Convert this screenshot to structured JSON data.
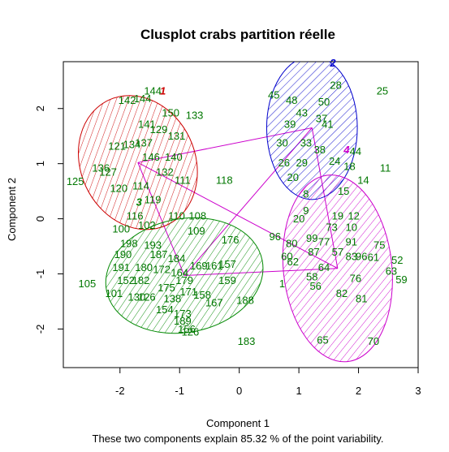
{
  "chart_data": {
    "type": "scatter",
    "title": "Clusplot crabs partition réelle",
    "xlabel": "Component 1",
    "ylabel": "Component 2",
    "caption": "These two components explain 85.32 % of the point variability.",
    "xlim": [
      -2.95,
      3.0
    ],
    "ylim": [
      -2.7,
      2.85
    ],
    "x_ticks": [
      "-2",
      "-1",
      "0",
      "1",
      "2",
      "3"
    ],
    "y_ticks": [
      "-2",
      "-1",
      "0",
      "1",
      "2"
    ],
    "colors": {
      "c1": "#cc0000",
      "c2": "#0000cc",
      "c3": "#008800",
      "c4": "#cc00cc",
      "points": "#007700",
      "links": "#cc00cc"
    },
    "clusters": [
      {
        "label": "1",
        "color": "#cc0000",
        "center": [
          -1.7,
          1.02
        ],
        "rx": 0.96,
        "ry": 1.25,
        "angle": -25
      },
      {
        "label": "2",
        "color": "#0000cc",
        "center": [
          1.22,
          1.65
        ],
        "rx": 0.76,
        "ry": 1.3,
        "angle": 0
      },
      {
        "label": "3",
        "color": "#008800",
        "center": [
          -0.92,
          -1.03
        ],
        "rx": 1.33,
        "ry": 1.03,
        "angle": -11
      },
      {
        "label": "4",
        "color": "#cc00cc",
        "center": [
          1.65,
          -0.9
        ],
        "rx": 0.91,
        "ry": 1.7,
        "angle": -6
      }
    ],
    "cluster_labels": [
      {
        "text": "1",
        "color": "#cc0000",
        "x": -1.28,
        "y": 2.32
      },
      {
        "text": "2",
        "color": "#0000cc",
        "x": 1.57,
        "y": 2.83
      },
      {
        "text": "3",
        "color": "#008800",
        "x": -1.68,
        "y": 0.3
      },
      {
        "text": "4",
        "color": "#cc00cc",
        "x": 1.8,
        "y": 1.25
      }
    ],
    "links": [
      [
        -1.7,
        1.02,
        1.22,
        1.65
      ],
      [
        -1.7,
        1.02,
        -0.92,
        -1.03
      ],
      [
        -1.7,
        1.02,
        1.65,
        -0.9
      ],
      [
        1.22,
        1.65,
        -0.92,
        -1.03
      ],
      [
        1.22,
        1.65,
        1.65,
        -0.9
      ],
      [
        -0.92,
        -1.03,
        1.65,
        -0.9
      ]
    ],
    "points": [
      {
        "label": "144",
        "x": -1.45,
        "y": 2.32
      },
      {
        "label": "142",
        "x": -1.88,
        "y": 2.15
      },
      {
        "label": "144",
        "x": -1.62,
        "y": 2.18
      },
      {
        "label": "150",
        "x": -1.15,
        "y": 1.92
      },
      {
        "label": "133",
        "x": -0.75,
        "y": 1.88
      },
      {
        "label": "141",
        "x": -1.55,
        "y": 1.72
      },
      {
        "label": "129",
        "x": -1.35,
        "y": 1.62
      },
      {
        "label": "131",
        "x": -1.05,
        "y": 1.5
      },
      {
        "label": "121",
        "x": -2.05,
        "y": 1.32
      },
      {
        "label": "134",
        "x": -1.8,
        "y": 1.35
      },
      {
        "label": "137",
        "x": -1.6,
        "y": 1.38
      },
      {
        "label": "146",
        "x": -1.48,
        "y": 1.12
      },
      {
        "label": "140",
        "x": -1.1,
        "y": 1.12
      },
      {
        "label": "136",
        "x": -2.32,
        "y": 0.92
      },
      {
        "label": "127",
        "x": -2.2,
        "y": 0.85
      },
      {
        "label": "132",
        "x": -1.25,
        "y": 0.85
      },
      {
        "label": "125",
        "x": -2.75,
        "y": 0.68
      },
      {
        "label": "120",
        "x": -2.02,
        "y": 0.55
      },
      {
        "label": "111",
        "x": -0.95,
        "y": 0.7
      },
      {
        "label": "118",
        "x": -0.25,
        "y": 0.7
      },
      {
        "label": "114",
        "x": -1.65,
        "y": 0.6
      },
      {
        "label": "119",
        "x": -1.45,
        "y": 0.35
      },
      {
        "label": "116",
        "x": -1.75,
        "y": 0.05
      },
      {
        "label": "110",
        "x": -1.05,
        "y": 0.05
      },
      {
        "label": "108",
        "x": -0.7,
        "y": 0.05
      },
      {
        "label": "102",
        "x": -1.55,
        "y": -0.12
      },
      {
        "label": "100",
        "x": -1.98,
        "y": -0.18
      },
      {
        "label": "109",
        "x": -0.72,
        "y": -0.22
      },
      {
        "label": "176",
        "x": -0.15,
        "y": -0.38
      },
      {
        "label": "198",
        "x": -1.85,
        "y": -0.45
      },
      {
        "label": "193",
        "x": -1.45,
        "y": -0.48
      },
      {
        "label": "190",
        "x": -1.95,
        "y": -0.65
      },
      {
        "label": "187",
        "x": -1.35,
        "y": -0.65
      },
      {
        "label": "184",
        "x": -1.05,
        "y": -0.72
      },
      {
        "label": "169",
        "x": -0.68,
        "y": -0.85
      },
      {
        "label": "161",
        "x": -0.42,
        "y": -0.85
      },
      {
        "label": "157",
        "x": -0.2,
        "y": -0.82
      },
      {
        "label": "191",
        "x": -1.98,
        "y": -0.88
      },
      {
        "label": "180",
        "x": -1.6,
        "y": -0.88
      },
      {
        "label": "172",
        "x": -1.3,
        "y": -0.92
      },
      {
        "label": "164",
        "x": -1.0,
        "y": -0.98
      },
      {
        "label": "152",
        "x": -1.9,
        "y": -1.12
      },
      {
        "label": "182",
        "x": -1.65,
        "y": -1.12
      },
      {
        "label": "179",
        "x": -0.92,
        "y": -1.12
      },
      {
        "label": "159",
        "x": -0.2,
        "y": -1.12
      },
      {
        "label": "105",
        "x": -2.55,
        "y": -1.18
      },
      {
        "label": "175",
        "x": -1.22,
        "y": -1.25
      },
      {
        "label": "171",
        "x": -0.85,
        "y": -1.32
      },
      {
        "label": "101",
        "x": -2.1,
        "y": -1.35
      },
      {
        "label": "130",
        "x": -1.72,
        "y": -1.42
      },
      {
        "label": "126",
        "x": -1.55,
        "y": -1.42
      },
      {
        "label": "138",
        "x": -1.12,
        "y": -1.45
      },
      {
        "label": "158",
        "x": -0.62,
        "y": -1.38
      },
      {
        "label": "167",
        "x": -0.42,
        "y": -1.52
      },
      {
        "label": "188",
        "x": 0.1,
        "y": -1.48
      },
      {
        "label": "154",
        "x": -1.25,
        "y": -1.65
      },
      {
        "label": "173",
        "x": -0.95,
        "y": -1.72
      },
      {
        "label": "189",
        "x": -0.95,
        "y": -1.85
      },
      {
        "label": "156",
        "x": -0.88,
        "y": -2.0
      },
      {
        "label": "126",
        "x": -0.82,
        "y": -2.05
      },
      {
        "label": "183",
        "x": 0.12,
        "y": -2.22
      },
      {
        "label": "45",
        "x": 0.58,
        "y": 2.25
      },
      {
        "label": "28",
        "x": 1.62,
        "y": 2.42
      },
      {
        "label": "25",
        "x": 2.4,
        "y": 2.32
      },
      {
        "label": "48",
        "x": 0.88,
        "y": 2.15
      },
      {
        "label": "50",
        "x": 1.42,
        "y": 2.12
      },
      {
        "label": "43",
        "x": 1.05,
        "y": 1.92
      },
      {
        "label": "37",
        "x": 1.38,
        "y": 1.82
      },
      {
        "label": "39",
        "x": 0.85,
        "y": 1.72
      },
      {
        "label": "41",
        "x": 1.48,
        "y": 1.72
      },
      {
        "label": "30",
        "x": 0.72,
        "y": 1.38
      },
      {
        "label": "33",
        "x": 1.12,
        "y": 1.38
      },
      {
        "label": "38",
        "x": 1.35,
        "y": 1.25
      },
      {
        "label": "44",
        "x": 1.95,
        "y": 1.22
      },
      {
        "label": "26",
        "x": 0.75,
        "y": 1.02
      },
      {
        "label": "29",
        "x": 1.05,
        "y": 1.02
      },
      {
        "label": "24",
        "x": 1.6,
        "y": 1.05
      },
      {
        "label": "18",
        "x": 1.85,
        "y": 0.95
      },
      {
        "label": "11",
        "x": 2.45,
        "y": 0.92
      },
      {
        "label": "20",
        "x": 0.9,
        "y": 0.75
      },
      {
        "label": "14",
        "x": 2.08,
        "y": 0.7
      },
      {
        "label": "15",
        "x": 1.75,
        "y": 0.5
      },
      {
        "label": "8",
        "x": 1.12,
        "y": 0.45
      },
      {
        "label": "9",
        "x": 1.12,
        "y": 0.15
      },
      {
        "label": "19",
        "x": 1.65,
        "y": 0.05
      },
      {
        "label": "12",
        "x": 1.92,
        "y": 0.05
      },
      {
        "label": "20",
        "x": 1.0,
        "y": 0.0
      },
      {
        "label": "73",
        "x": 1.55,
        "y": -0.15
      },
      {
        "label": "10",
        "x": 1.88,
        "y": -0.15
      },
      {
        "label": "96",
        "x": 0.6,
        "y": -0.32
      },
      {
        "label": "80",
        "x": 0.88,
        "y": -0.45
      },
      {
        "label": "99",
        "x": 1.22,
        "y": -0.35
      },
      {
        "label": "77",
        "x": 1.42,
        "y": -0.42
      },
      {
        "label": "91",
        "x": 1.88,
        "y": -0.42
      },
      {
        "label": "75",
        "x": 2.35,
        "y": -0.48
      },
      {
        "label": "60",
        "x": 0.8,
        "y": -0.68
      },
      {
        "label": "87",
        "x": 1.25,
        "y": -0.6
      },
      {
        "label": "57",
        "x": 1.65,
        "y": -0.6
      },
      {
        "label": "83",
        "x": 1.88,
        "y": -0.68
      },
      {
        "label": "61",
        "x": 2.25,
        "y": -0.7
      },
      {
        "label": "52",
        "x": 2.65,
        "y": -0.75
      },
      {
        "label": "62",
        "x": 0.9,
        "y": -0.78
      },
      {
        "label": "64",
        "x": 1.42,
        "y": -0.88
      },
      {
        "label": "96",
        "x": 2.05,
        "y": -0.68
      },
      {
        "label": "63",
        "x": 2.55,
        "y": -0.95
      },
      {
        "label": "59",
        "x": 2.72,
        "y": -1.1
      },
      {
        "label": "58",
        "x": 1.22,
        "y": -1.05
      },
      {
        "label": "76",
        "x": 1.95,
        "y": -1.08
      },
      {
        "label": "1",
        "x": 0.72,
        "y": -1.18
      },
      {
        "label": "56",
        "x": 1.28,
        "y": -1.22
      },
      {
        "label": "82",
        "x": 1.72,
        "y": -1.35
      },
      {
        "label": "81",
        "x": 2.05,
        "y": -1.45
      },
      {
        "label": "65",
        "x": 1.4,
        "y": -2.2
      },
      {
        "label": "70",
        "x": 2.25,
        "y": -2.22
      }
    ]
  }
}
